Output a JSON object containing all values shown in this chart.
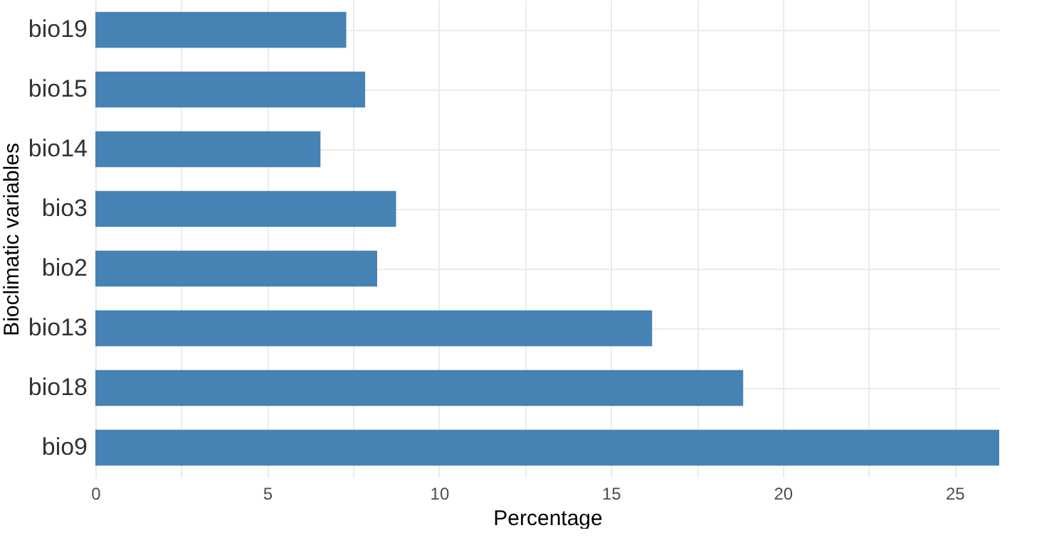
{
  "chart_data": {
    "type": "bar",
    "orientation": "horizontal",
    "xlabel": "Percentage",
    "ylabel": "Bioclimatic variables",
    "categories": [
      "bio19",
      "bio15",
      "bio14",
      "bio3",
      "bio2",
      "bio13",
      "bio18",
      "bio9"
    ],
    "values": [
      7.3,
      7.85,
      6.55,
      8.75,
      8.2,
      16.2,
      18.85,
      26.3
    ],
    "color": "#4682b4",
    "xlim": [
      0,
      26.3
    ],
    "xticks": [
      0,
      {
        "value": 2.5,
        "label": null
      },
      5,
      {
        "value": 7.5,
        "label": null
      },
      10,
      {
        "value": 12.5,
        "label": null
      },
      15,
      {
        "value": 17.5,
        "label": null
      },
      20,
      {
        "value": 22.5,
        "label": null
      },
      25
    ],
    "grid": true
  }
}
